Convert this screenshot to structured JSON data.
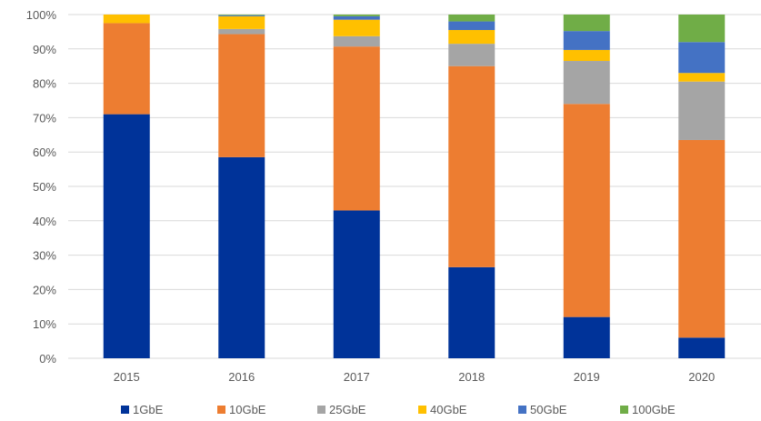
{
  "chart_data": {
    "type": "bar",
    "stacked": true,
    "title": "",
    "xlabel": "",
    "ylabel": "",
    "ylim": [
      0,
      100
    ],
    "y_ticks": [
      0,
      10,
      20,
      30,
      40,
      50,
      60,
      70,
      80,
      90,
      100
    ],
    "y_tick_labels": [
      "0%",
      "10%",
      "20%",
      "30%",
      "40%",
      "50%",
      "60%",
      "70%",
      "80%",
      "90%",
      "100%"
    ],
    "grid": "horizontal",
    "legend_position": "bottom",
    "categories": [
      "2015",
      "2016",
      "2017",
      "2018",
      "2019",
      "2020"
    ],
    "series": [
      {
        "name": "1GbE",
        "color": "#003399",
        "values": [
          71,
          58.5,
          43,
          26.5,
          12,
          6
        ]
      },
      {
        "name": "10GbE",
        "color": "#ED7D31",
        "values": [
          26.5,
          35.8,
          47.7,
          58.5,
          62,
          57.5
        ]
      },
      {
        "name": "25GbE",
        "color": "#A5A5A5",
        "values": [
          0,
          1.5,
          3,
          6.5,
          12.5,
          17
        ]
      },
      {
        "name": "40GbE",
        "color": "#FFC000",
        "values": [
          2.5,
          3.7,
          4.8,
          4,
          3.2,
          2.5
        ]
      },
      {
        "name": "50GbE",
        "color": "#4472C4",
        "values": [
          0,
          0.3,
          1,
          2.5,
          5.5,
          9
        ]
      },
      {
        "name": "100GbE",
        "color": "#70AD47",
        "values": [
          0,
          0.2,
          0.5,
          2,
          4.8,
          8
        ]
      }
    ]
  }
}
